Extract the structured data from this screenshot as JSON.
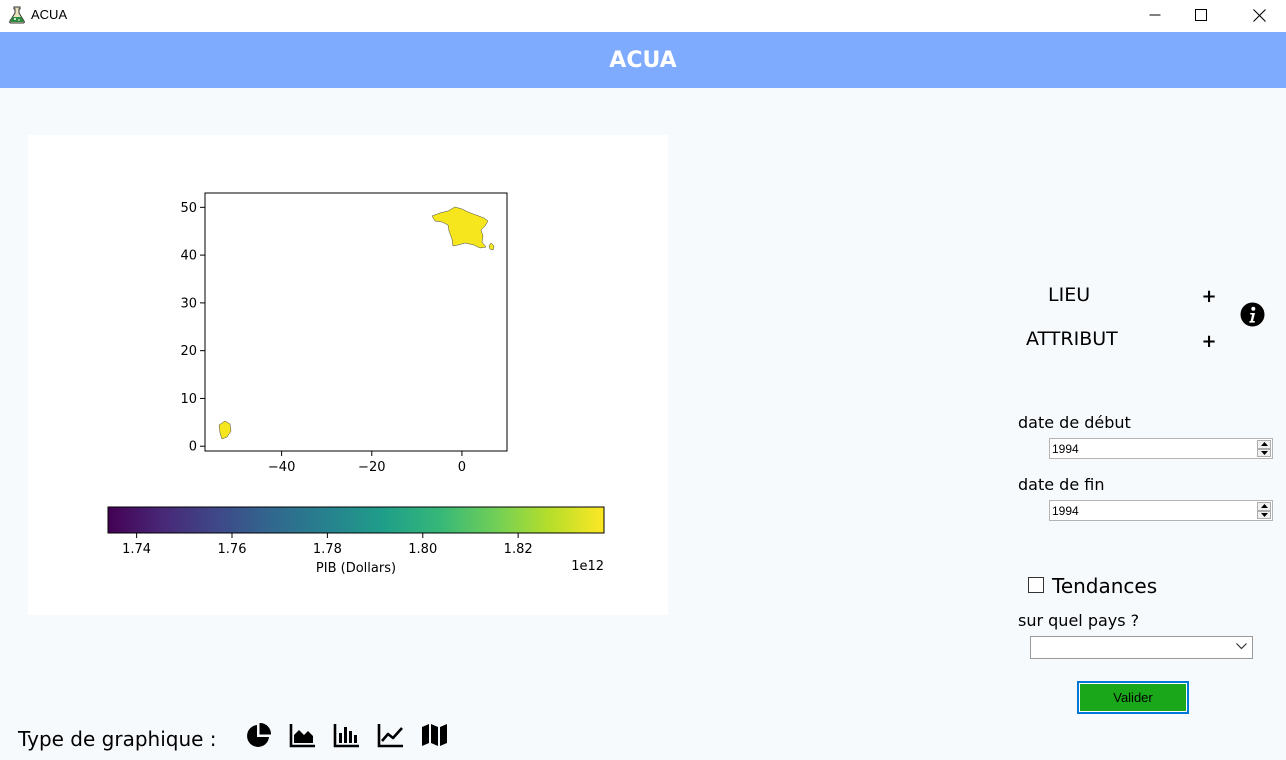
{
  "window": {
    "title": "ACUA",
    "controls": [
      "minimize-icon",
      "maximize-icon",
      "close-icon"
    ]
  },
  "banner": {
    "title": "ACUA"
  },
  "map": {
    "y_axis": {
      "ticks": [
        "0",
        "10",
        "20",
        "30",
        "40",
        "50"
      ],
      "values": [
        0,
        10,
        20,
        30,
        40,
        50
      ]
    },
    "x_axis": {
      "ticks": [
        "−40",
        "−20",
        "0"
      ],
      "values": [
        -40,
        -20,
        0
      ]
    },
    "xlim": [
      -57,
      10
    ],
    "ylim": [
      -1,
      53
    ],
    "regions": [
      {
        "name": "France (métropole)",
        "color": "#f5e61e"
      },
      {
        "name": "Guyane",
        "color": "#f5e61e"
      },
      {
        "name": "Corse",
        "color": "#f5e61e"
      }
    ]
  },
  "chart_data": {
    "type": "heatmap",
    "colorbar": {
      "label": "PIB (Dollars)",
      "scale_label": "1e12",
      "ticks": [
        "1.74",
        "1.76",
        "1.78",
        "1.80",
        "1.82"
      ],
      "tick_values": [
        1.74,
        1.76,
        1.78,
        1.8,
        1.82
      ],
      "range": [
        1.734,
        1.838
      ],
      "colormap": [
        "#440154",
        "#482878",
        "#3e4989",
        "#31688e",
        "#26828e",
        "#1f9e89",
        "#35b779",
        "#6ece58",
        "#b5de2b",
        "#fde725"
      ]
    },
    "xlabel": "",
    "ylabel": ""
  },
  "sidebar": {
    "lieu_label": "LIEU",
    "attribut_label": "ATTRIBUT",
    "plus": "+",
    "start_label": "date de début",
    "start_value": "1994",
    "end_label": "date de fin",
    "end_value": "1994",
    "trend_label": "Tendances",
    "country_label": "sur quel pays ?",
    "country_value": "",
    "validate_label": "Valider"
  },
  "chart_types": {
    "label": "Type de graphique :",
    "items": [
      "pie-chart-icon",
      "area-chart-icon",
      "bar-chart-icon",
      "line-chart-icon",
      "map-icon"
    ]
  },
  "colors": {
    "banner": "#7fabff",
    "background": "#f7fafd",
    "validate_button": "#1aa81a",
    "focus_border": "#0078d7"
  }
}
